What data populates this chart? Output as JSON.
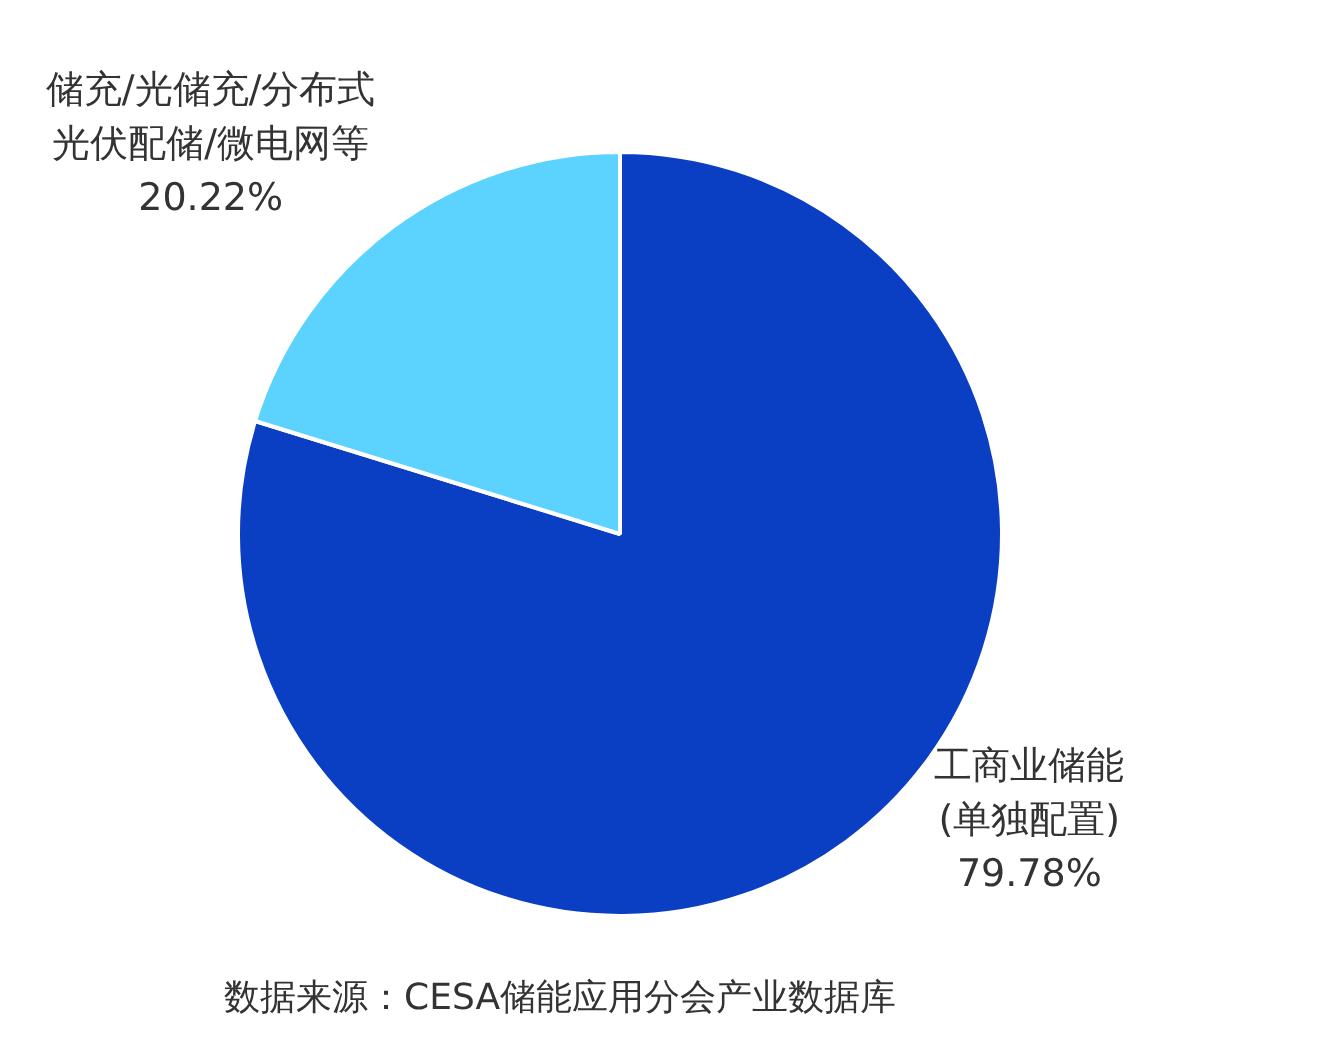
{
  "chart_data": {
    "type": "pie",
    "categories": [
      "工商业储能(单独配置)",
      "储充/光储充/分布式光伏配储/微电网等"
    ],
    "values": [
      79.78,
      20.22
    ],
    "value_labels": [
      "79.78%",
      "20.22%"
    ],
    "colors": [
      "#0a3fc4",
      "#5cd3ff"
    ],
    "legend": false,
    "annotations": [
      "数据来源：CESA储能应用分会产业数据库"
    ]
  }
}
